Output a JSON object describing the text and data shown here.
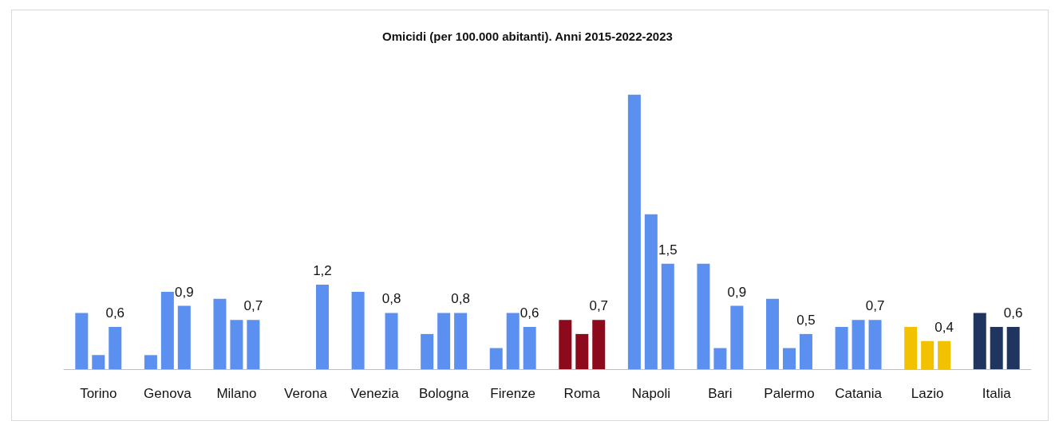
{
  "chart_data": {
    "type": "bar",
    "title": "Omicidi (per 100.000 abitanti). Anni 2015-2022-2023",
    "categories": [
      "Torino",
      "Genova",
      "Milano",
      "Verona",
      "Venezia",
      "Bologna",
      "Firenze",
      "Roma",
      "Napoli",
      "Bari",
      "Palermo",
      "Catania",
      "Lazio",
      "Italia"
    ],
    "tick_labels": "x",
    "grid": false,
    "series": [
      {
        "values": [
          0.8,
          0.2,
          1.0,
          null,
          1.1,
          0.5,
          0.3,
          0.7,
          3.9,
          1.5,
          1.0,
          0.6,
          0.6,
          0.8
        ],
        "colors": [
          "#5b8ff0",
          "#5b8ff0",
          "#5b8ff0",
          "#5b8ff0",
          "#5b8ff0",
          "#5b8ff0",
          "#5b8ff0",
          "#8c0a1c",
          "#5b8ff0",
          "#5b8ff0",
          "#5b8ff0",
          "#5b8ff0",
          "#f2c200",
          "#1f3560"
        ]
      },
      {
        "values": [
          0.2,
          1.1,
          0.7,
          null,
          null,
          0.8,
          0.8,
          0.5,
          2.2,
          0.3,
          0.3,
          0.7,
          0.4,
          0.6
        ],
        "colors": [
          "#5b8ff0",
          "#5b8ff0",
          "#5b8ff0",
          "#5b8ff0",
          "#5b8ff0",
          "#5b8ff0",
          "#5b8ff0",
          "#8c0a1c",
          "#5b8ff0",
          "#5b8ff0",
          "#5b8ff0",
          "#5b8ff0",
          "#f2c200",
          "#1f3560"
        ]
      },
      {
        "values": [
          0.6,
          0.9,
          0.7,
          1.2,
          0.8,
          0.8,
          0.6,
          0.7,
          1.5,
          0.9,
          0.5,
          0.7,
          0.4,
          0.6
        ],
        "colors": [
          "#5b8ff0",
          "#5b8ff0",
          "#5b8ff0",
          "#5b8ff0",
          "#5b8ff0",
          "#5b8ff0",
          "#5b8ff0",
          "#8c0a1c",
          "#5b8ff0",
          "#5b8ff0",
          "#5b8ff0",
          "#5b8ff0",
          "#f2c200",
          "#1f3560"
        ],
        "value_labels": [
          "0,6",
          "0,9",
          "0,7",
          "1,2",
          "0,8",
          "0,8",
          "0,6",
          "0,7",
          "1,5",
          "0,9",
          "0,5",
          "0,7",
          "0,4",
          "0,6"
        ]
      }
    ]
  }
}
